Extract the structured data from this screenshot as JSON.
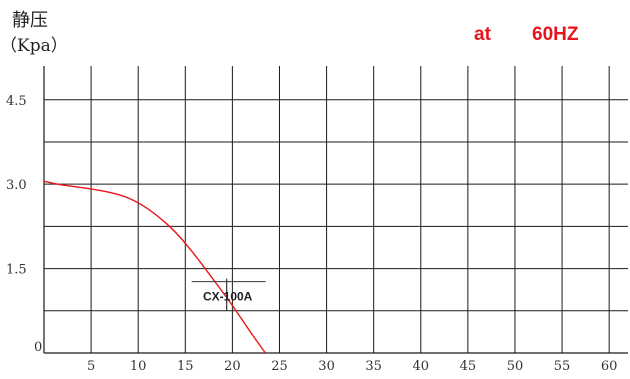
{
  "chart_data": {
    "type": "line",
    "ylabel": "静压",
    "ylabel_unit": "（Kpa）",
    "subtitle_prefix": "at",
    "subtitle_value": "60HZ",
    "xlim": [
      0,
      62
    ],
    "ylim": [
      0,
      5.1
    ],
    "x_ticks": [
      5,
      10,
      15,
      20,
      25,
      30,
      35,
      40,
      45,
      50,
      55,
      60
    ],
    "x_tick_labels": [
      "5",
      "10",
      "15",
      "20",
      "25",
      "30",
      "35",
      "40",
      "45",
      "50",
      "55",
      "60"
    ],
    "y_ticks": [
      0,
      1.5,
      3.0,
      4.5
    ],
    "y_tick_labels": [
      "0",
      "1.5",
      "3.0",
      "4.5"
    ],
    "grid": true,
    "legend": "none",
    "series": [
      {
        "color": "#e8141b",
        "x": [
          0,
          2,
          5,
          8,
          10,
          12,
          14,
          16,
          18,
          20,
          22,
          23.5
        ],
        "y": [
          3.05,
          2.98,
          2.92,
          2.82,
          2.68,
          2.45,
          2.15,
          1.75,
          1.3,
          0.85,
          0.35,
          0.0
        ]
      }
    ],
    "annotations": [
      {
        "text": "CX-100A",
        "x": 19.5,
        "y": 1.25
      }
    ]
  }
}
